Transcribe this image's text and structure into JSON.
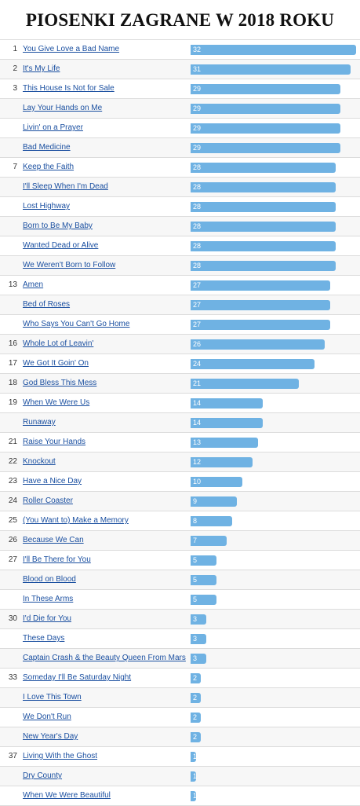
{
  "title": "PIOSENKI ZAGRANE W 2018 ROKU",
  "colors": {
    "bar": "#6fb2e3",
    "link": "#1a4fa0",
    "rule": "#dcdcdc"
  },
  "chart_data": {
    "type": "bar",
    "orientation": "horizontal",
    "title": "PIOSENKI ZAGRANE W 2018 ROKU",
    "xlim": [
      0,
      32
    ],
    "rows": [
      {
        "rank": "1",
        "song": "You Give Love a Bad Name",
        "value": 32
      },
      {
        "rank": "2",
        "song": "It's My Life",
        "value": 31
      },
      {
        "rank": "3",
        "song": "This House Is Not for Sale",
        "value": 29
      },
      {
        "rank": "",
        "song": "Lay Your Hands on Me",
        "value": 29
      },
      {
        "rank": "",
        "song": "Livin' on a Prayer",
        "value": 29
      },
      {
        "rank": "",
        "song": "Bad Medicine",
        "value": 29
      },
      {
        "rank": "7",
        "song": "Keep the Faith",
        "value": 28
      },
      {
        "rank": "",
        "song": "I'll Sleep When I'm Dead",
        "value": 28
      },
      {
        "rank": "",
        "song": "Lost Highway",
        "value": 28
      },
      {
        "rank": "",
        "song": "Born to Be My Baby",
        "value": 28
      },
      {
        "rank": "",
        "song": "Wanted Dead or Alive",
        "value": 28
      },
      {
        "rank": "",
        "song": "We Weren't Born to Follow",
        "value": 28
      },
      {
        "rank": "13",
        "song": "Amen",
        "value": 27
      },
      {
        "rank": "",
        "song": "Bed of Roses",
        "value": 27
      },
      {
        "rank": "",
        "song": "Who Says You Can't Go Home",
        "value": 27
      },
      {
        "rank": "16",
        "song": "Whole Lot of Leavin'",
        "value": 26
      },
      {
        "rank": "17",
        "song": "We Got It Goin' On",
        "value": 24
      },
      {
        "rank": "18",
        "song": "God Bless This Mess",
        "value": 21
      },
      {
        "rank": "19",
        "song": "When We Were Us",
        "value": 14
      },
      {
        "rank": "",
        "song": "Runaway",
        "value": 14
      },
      {
        "rank": "21",
        "song": "Raise Your Hands",
        "value": 13
      },
      {
        "rank": "22",
        "song": "Knockout",
        "value": 12
      },
      {
        "rank": "23",
        "song": "Have a Nice Day",
        "value": 10
      },
      {
        "rank": "24",
        "song": "Roller Coaster",
        "value": 9
      },
      {
        "rank": "25",
        "song": "(You Want to) Make a Memory",
        "value": 8
      },
      {
        "rank": "26",
        "song": "Because We Can",
        "value": 7
      },
      {
        "rank": "27",
        "song": "I'll Be There for You",
        "value": 5
      },
      {
        "rank": "",
        "song": "Blood on Blood",
        "value": 5
      },
      {
        "rank": "",
        "song": "In These Arms",
        "value": 5
      },
      {
        "rank": "30",
        "song": "I'd Die for You",
        "value": 3
      },
      {
        "rank": "",
        "song": "These Days",
        "value": 3
      },
      {
        "rank": "",
        "song": "Captain Crash & the Beauty Queen From Mars",
        "value": 3
      },
      {
        "rank": "33",
        "song": "Someday I'll Be Saturday Night",
        "value": 2
      },
      {
        "rank": "",
        "song": "I Love This Town",
        "value": 2
      },
      {
        "rank": "",
        "song": "We Don't Run",
        "value": 2
      },
      {
        "rank": "",
        "song": "New Year's Day",
        "value": 2
      },
      {
        "rank": "37",
        "song": "Living With the Ghost",
        "value": 1
      },
      {
        "rank": "",
        "song": "Dry County",
        "value": 1
      },
      {
        "rank": "",
        "song": "When We Were Beautiful",
        "value": 1
      }
    ]
  }
}
